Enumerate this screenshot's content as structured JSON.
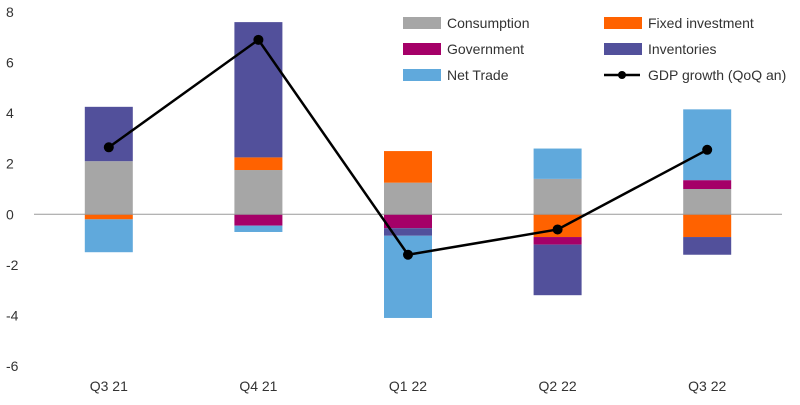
{
  "chart_data": {
    "type": "bar",
    "stacked": true,
    "title": "",
    "xlabel": "",
    "ylabel": "",
    "categories": [
      "Q3 21",
      "Q4 21",
      "Q1 22",
      "Q2 22",
      "Q3 22"
    ],
    "ylim": [
      -6,
      8
    ],
    "yticks": [
      -6,
      -4,
      -2,
      0,
      2,
      4,
      6,
      8
    ],
    "grid": false,
    "legend_position": "top-right",
    "series": [
      {
        "name": "Consumption",
        "type": "bar",
        "color": "#a6a6a6",
        "values": [
          2.1,
          1.75,
          1.25,
          1.4,
          1.0
        ]
      },
      {
        "name": "Fixed investment",
        "type": "bar",
        "color": "#ff6200",
        "values": [
          -0.2,
          0.5,
          1.25,
          -0.9,
          -0.9
        ]
      },
      {
        "name": "Government",
        "type": "bar",
        "color": "#a50068",
        "values": [
          0.0,
          -0.45,
          -0.55,
          -0.3,
          0.35
        ]
      },
      {
        "name": "Inventories",
        "type": "bar",
        "color": "#52509b",
        "values": [
          2.15,
          5.35,
          -0.3,
          -2.0,
          -0.7
        ]
      },
      {
        "name": "Net Trade",
        "type": "bar",
        "color": "#60a9dc",
        "values": [
          -1.3,
          -0.25,
          -3.25,
          1.2,
          2.8
        ]
      },
      {
        "name": "GDP growth (QoQ an)",
        "type": "line",
        "color": "#000000",
        "values": [
          2.65,
          6.9,
          -1.6,
          -0.6,
          2.55
        ]
      }
    ]
  }
}
